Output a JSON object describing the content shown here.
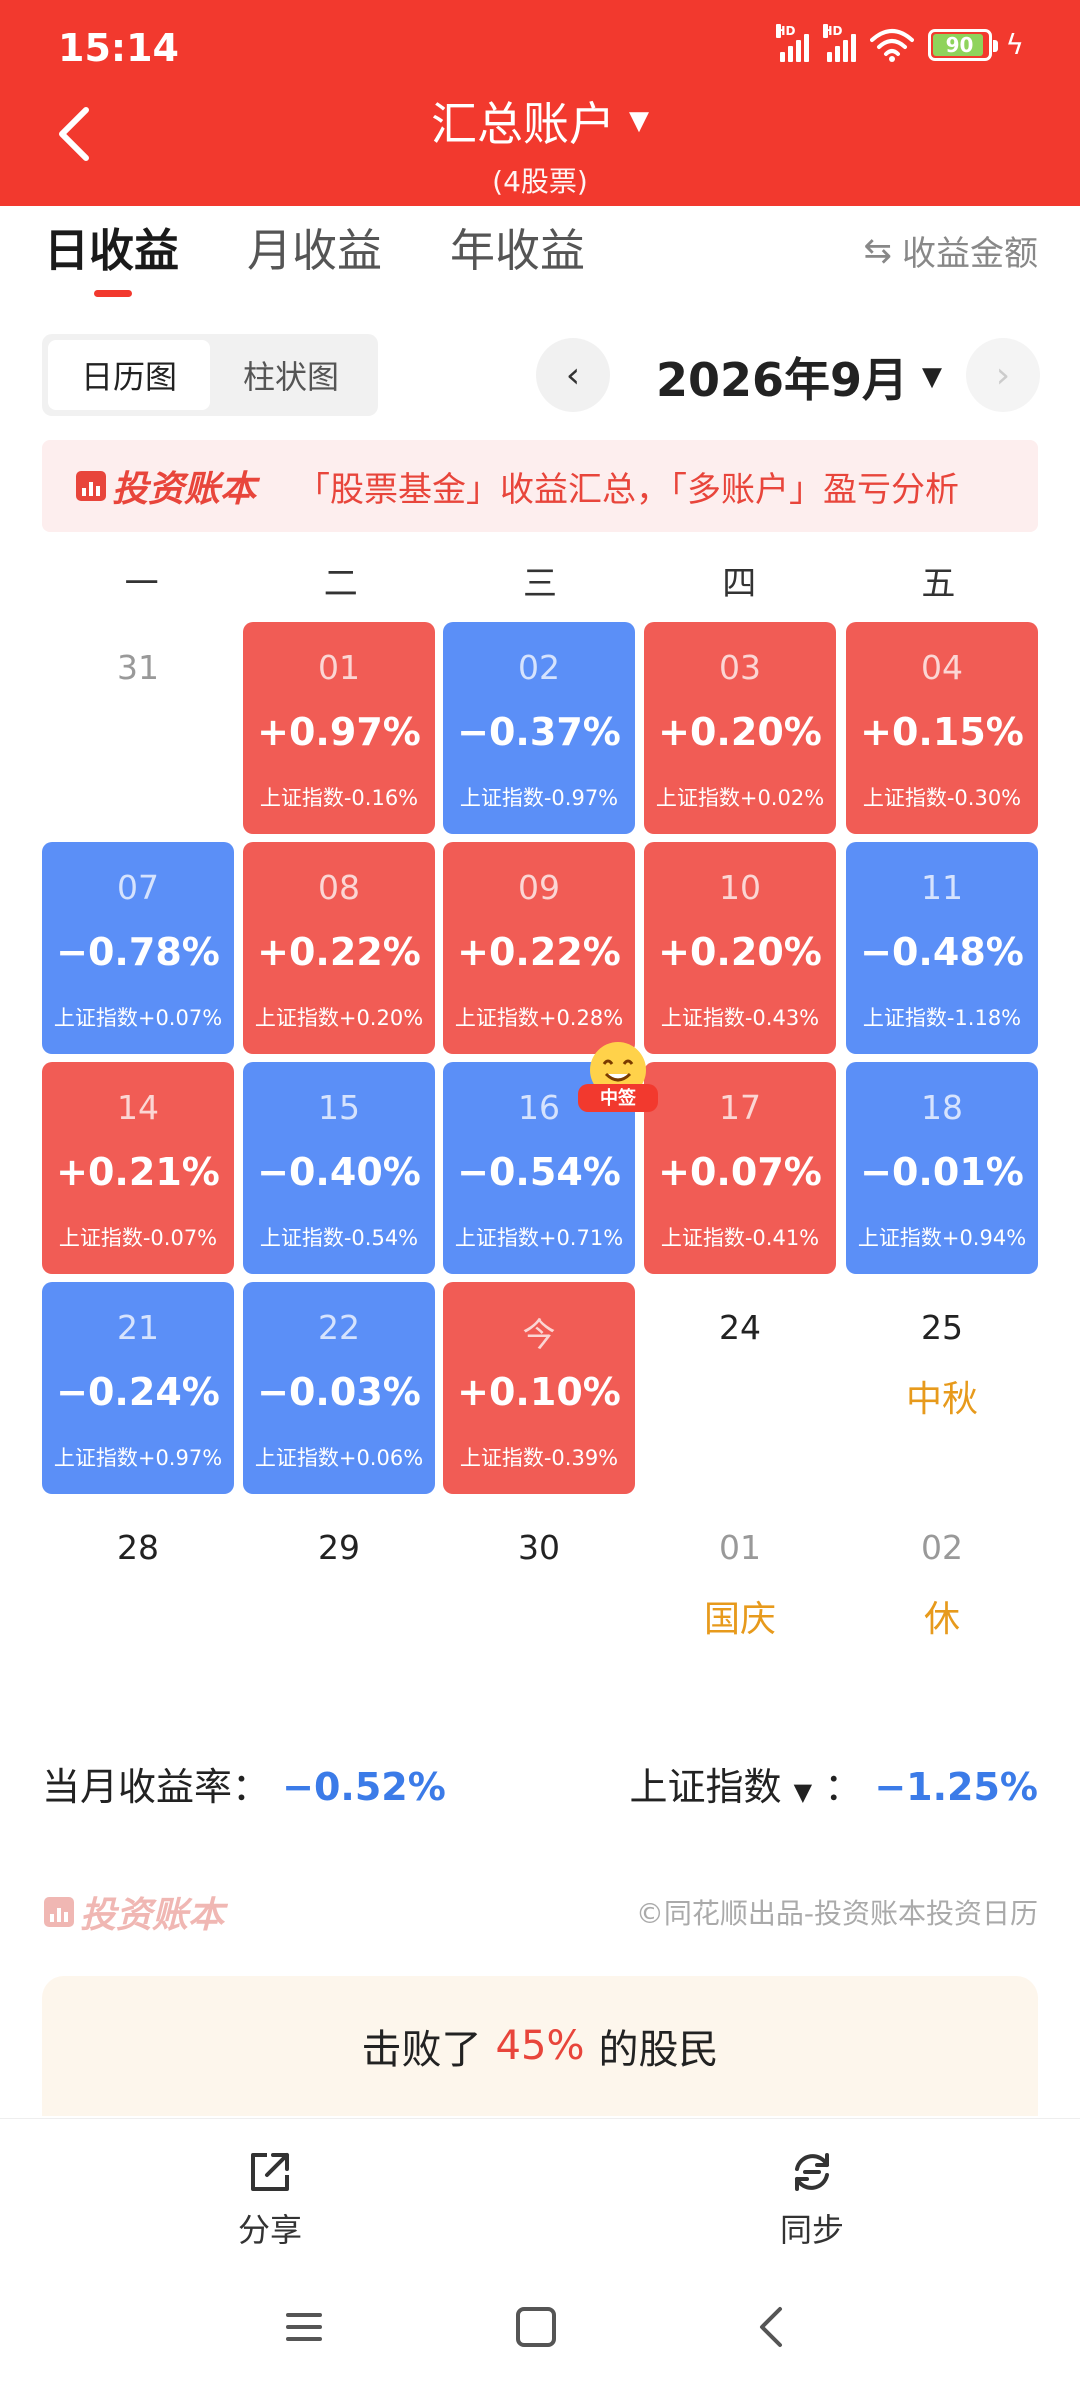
{
  "status_bar": {
    "time": "15:14",
    "battery": "90",
    "network_1": "HD",
    "network_2": "HD"
  },
  "header": {
    "title": "汇总账户",
    "subtitle": "(4股票)"
  },
  "tabs": [
    {
      "label": "日收益",
      "active": true
    },
    {
      "label": "月收益",
      "active": false
    },
    {
      "label": "年收益",
      "active": false
    }
  ],
  "income_toggle": {
    "icon": "swap-icon",
    "label": "收益金额"
  },
  "view_switch": {
    "calendar": "日历图",
    "bar": "柱状图"
  },
  "month": {
    "label": "2026年9月",
    "prev": "‹",
    "next": "›"
  },
  "banner": {
    "brand": "投资账本",
    "text": "「股票基金」收益汇总，「多账户」盈亏分析"
  },
  "weekdays": [
    "一",
    "二",
    "三",
    "四",
    "五"
  ],
  "calendar": [
    {
      "day": "31",
      "pct": "",
      "idx": "",
      "type": "plain-muted"
    },
    {
      "day": "01",
      "pct": "+0.97%",
      "idx": "上证指数-0.16%",
      "type": "up"
    },
    {
      "day": "02",
      "pct": "−0.37%",
      "idx": "上证指数-0.97%",
      "type": "down"
    },
    {
      "day": "03",
      "pct": "+0.20%",
      "idx": "上证指数+0.02%",
      "type": "up"
    },
    {
      "day": "04",
      "pct": "+0.15%",
      "idx": "上证指数-0.30%",
      "type": "up"
    },
    {
      "day": "07",
      "pct": "−0.78%",
      "idx": "上证指数+0.07%",
      "type": "down"
    },
    {
      "day": "08",
      "pct": "+0.22%",
      "idx": "上证指数+0.20%",
      "type": "up"
    },
    {
      "day": "09",
      "pct": "+0.22%",
      "idx": "上证指数+0.28%",
      "type": "up"
    },
    {
      "day": "10",
      "pct": "+0.20%",
      "idx": "上证指数-0.43%",
      "type": "up"
    },
    {
      "day": "11",
      "pct": "−0.48%",
      "idx": "上证指数-1.18%",
      "type": "down"
    },
    {
      "day": "14",
      "pct": "+0.21%",
      "idx": "上证指数-0.07%",
      "type": "up"
    },
    {
      "day": "15",
      "pct": "−0.40%",
      "idx": "上证指数-0.54%",
      "type": "down"
    },
    {
      "day": "16",
      "pct": "−0.54%",
      "idx": "上证指数+0.71%",
      "type": "down"
    },
    {
      "day": "17",
      "pct": "+0.07%",
      "idx": "上证指数-0.41%",
      "type": "up"
    },
    {
      "day": "18",
      "pct": "−0.01%",
      "idx": "上证指数+0.94%",
      "type": "down"
    },
    {
      "day": "21",
      "pct": "−0.24%",
      "idx": "上证指数+0.97%",
      "type": "down"
    },
    {
      "day": "22",
      "pct": "−0.03%",
      "idx": "上证指数+0.06%",
      "type": "down"
    },
    {
      "day": "今",
      "pct": "+0.10%",
      "idx": "上证指数-0.39%",
      "type": "up"
    },
    {
      "day": "24",
      "pct": "",
      "idx": "",
      "type": "plain"
    },
    {
      "day": "25",
      "pct": "",
      "idx": "",
      "type": "plain",
      "holiday": "中秋"
    },
    {
      "day": "28",
      "pct": "",
      "idx": "",
      "type": "plain"
    },
    {
      "day": "29",
      "pct": "",
      "idx": "",
      "type": "plain"
    },
    {
      "day": "30",
      "pct": "",
      "idx": "",
      "type": "plain"
    },
    {
      "day": "01",
      "pct": "",
      "idx": "",
      "type": "plain-muted",
      "holiday": "国庆"
    },
    {
      "day": "02",
      "pct": "",
      "idx": "",
      "type": "plain-muted",
      "holiday": "休"
    }
  ],
  "sticker": {
    "label": "中签"
  },
  "summary": {
    "month_label": "当月收益率：",
    "month_value": "−0.52%",
    "index_label": "上证指数",
    "index_sep": "：",
    "index_value": "−1.25%"
  },
  "footer": {
    "brand": "投资账本",
    "copyright": "©同花顺出品-投资账本投资日历"
  },
  "beat": {
    "prefix": "击败了",
    "value": "45%",
    "suffix": "的股民"
  },
  "bottom_bar": {
    "share": "分享",
    "sync": "同步"
  },
  "colors": {
    "header_red": "#f2392e",
    "gain": "#f15c55",
    "loss": "#5b8ff7",
    "holiday": "#e79a1c"
  }
}
